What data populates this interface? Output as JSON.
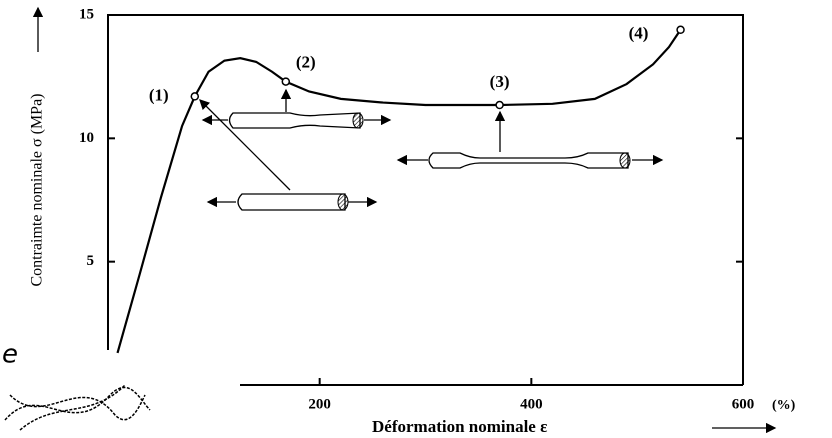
{
  "chart_data": {
    "type": "line",
    "y_label": "Contraimte nominale σ (MPa)",
    "x_label": "Déformation nominale ε",
    "x_unit": "(%)",
    "x": [
      9,
      30,
      50,
      70,
      82,
      95,
      110,
      125,
      140,
      155,
      168,
      190,
      220,
      260,
      300,
      370,
      420,
      460,
      490,
      515,
      530,
      541
    ],
    "series": [
      {
        "color": "#000000",
        "values": [
          1.3,
          4.5,
          7.6,
          10.5,
          11.7,
          12.7,
          13.15,
          13.25,
          13.1,
          12.7,
          12.3,
          11.9,
          11.6,
          11.45,
          11.35,
          11.35,
          11.4,
          11.6,
          12.2,
          13.0,
          13.7,
          14.4
        ]
      }
    ],
    "points": {
      "x": [
        82,
        168,
        370,
        541
      ],
      "values": [
        11.7,
        12.3,
        11.35,
        14.4
      ],
      "labels": [
        "(1)",
        "(2)",
        "(3)",
        "(4)"
      ]
    },
    "xlim": [
      0,
      600
    ],
    "ylim": [
      0,
      15
    ],
    "xticks": [
      200,
      400,
      600
    ],
    "yticks": [
      5,
      10,
      15
    ]
  },
  "fragment_text": "e"
}
